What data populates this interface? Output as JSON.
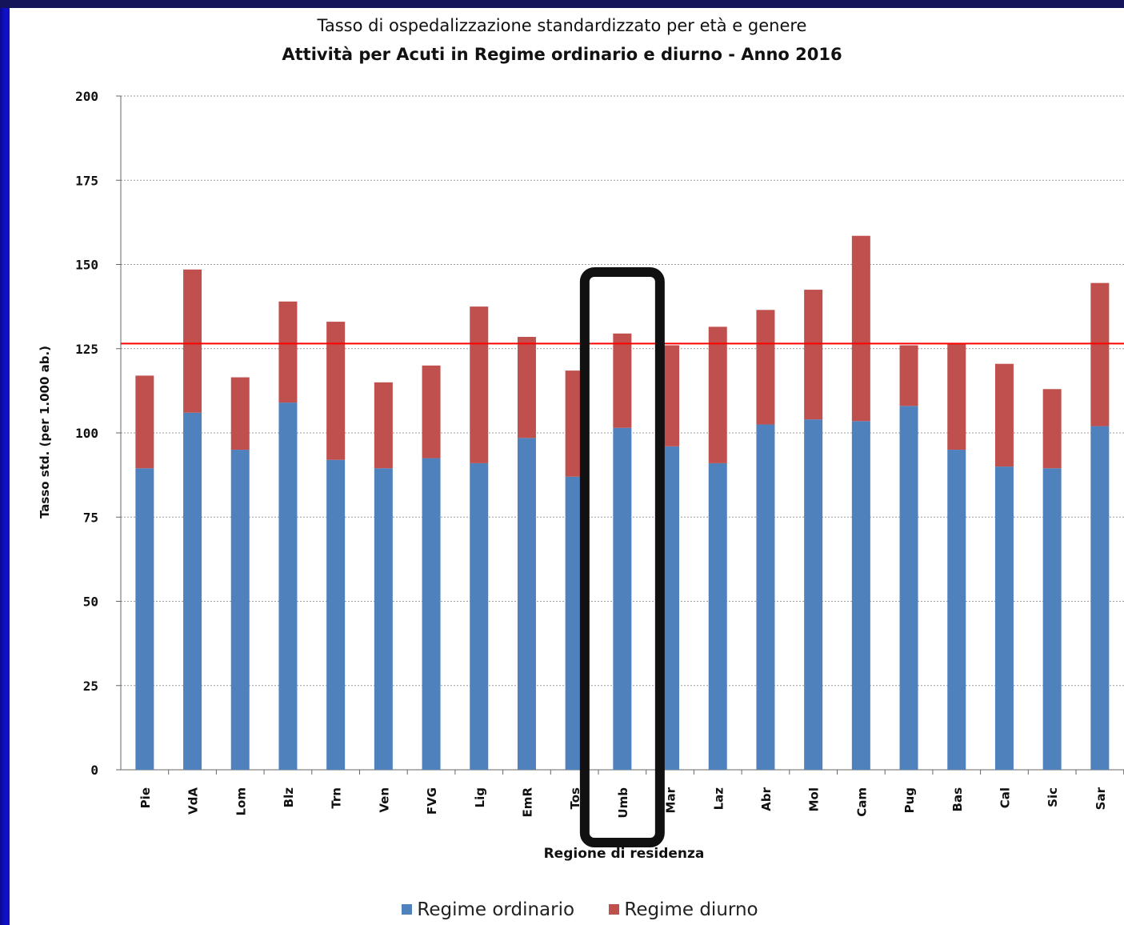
{
  "chart_data": {
    "type": "bar",
    "stacked": true,
    "title": "Tasso di ospedalizzazione standardizzato per età e genere",
    "subtitle": "Attività per Acuti in Regime ordinario e diurno - Anno 2016",
    "xlabel": "Regione di residenza",
    "ylabel": "Tasso std. (per 1.000 ab.)",
    "ylim": [
      0,
      200
    ],
    "yticks": [
      0,
      25,
      50,
      75,
      100,
      125,
      150,
      175,
      200
    ],
    "grid": true,
    "legend_position": "bottom",
    "categories": [
      "Pie",
      "VdA",
      "Lom",
      "Blz",
      "Trn",
      "Ven",
      "FVG",
      "Lig",
      "EmR",
      "Tos",
      "Umb",
      "Mar",
      "Laz",
      "Abr",
      "Mol",
      "Cam",
      "Pug",
      "Bas",
      "Cal",
      "Sic",
      "Sar"
    ],
    "series": [
      {
        "name": "Regime ordinario",
        "color": "#4f81bd",
        "values": [
          89.5,
          106,
          95,
          109,
          92,
          89.5,
          92.5,
          91,
          98.5,
          87,
          101.5,
          96,
          91,
          102.5,
          104,
          103.5,
          108,
          95,
          90,
          89.5,
          102
        ]
      },
      {
        "name": "Regime diurno",
        "color": "#c0504d",
        "values": [
          27.5,
          42.5,
          21.5,
          30,
          41,
          25.5,
          27.5,
          46.5,
          30,
          31.5,
          28,
          30,
          40.5,
          34,
          38.5,
          55,
          18,
          31.5,
          30.5,
          23.5,
          42.5
        ]
      }
    ],
    "reference_line": {
      "value": 126.5,
      "color": "#ff0000"
    },
    "highlight_category": "Umb"
  }
}
